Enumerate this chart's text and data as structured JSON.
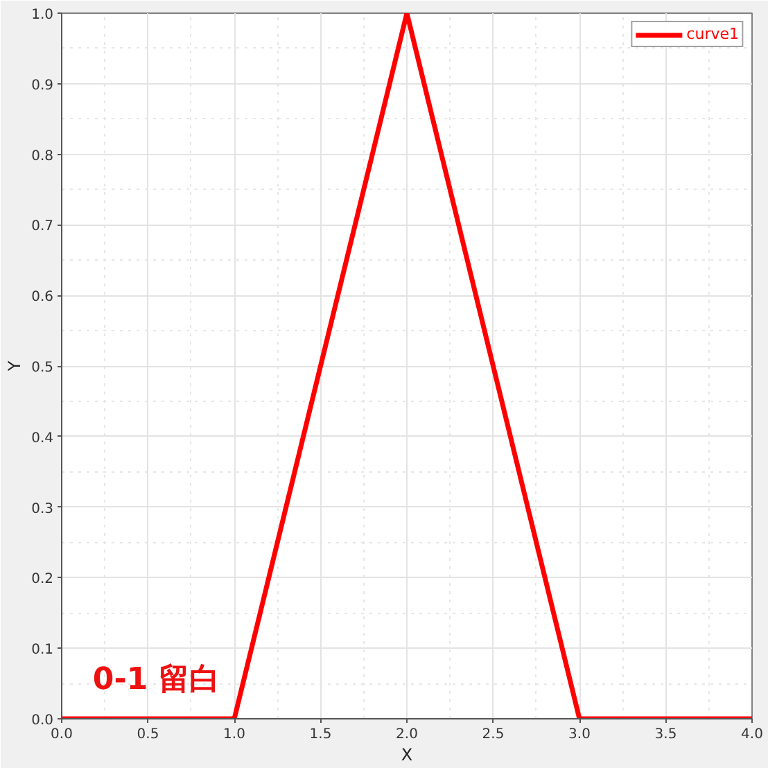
{
  "chart_data": {
    "type": "line",
    "x": [
      0,
      1,
      2,
      3,
      4
    ],
    "series": [
      {
        "name": "curve1",
        "color": "#ff0000",
        "values": [
          0,
          0,
          1,
          0,
          0
        ]
      }
    ],
    "xlabel": "X",
    "ylabel": "Y",
    "xlim": [
      0,
      4
    ],
    "ylim": [
      0,
      1
    ],
    "xticks": [
      {
        "value": 0,
        "label": "0.0"
      },
      0.5,
      {
        "value": 1,
        "label": "1.0"
      },
      1.5,
      {
        "value": 2,
        "label": "2.0"
      },
      2.5,
      {
        "value": 3,
        "label": "3.0"
      },
      3.5,
      {
        "value": 4,
        "label": "4.0"
      }
    ],
    "yticks": [
      {
        "value": 0,
        "label": "0.0"
      },
      0.1,
      0.2,
      0.3,
      0.4,
      0.5,
      0.6,
      0.7,
      0.8,
      0.9,
      {
        "value": 1,
        "label": "1.0"
      }
    ],
    "grid": true,
    "legend": "top right",
    "annotations": [
      "0-1 留白"
    ]
  }
}
